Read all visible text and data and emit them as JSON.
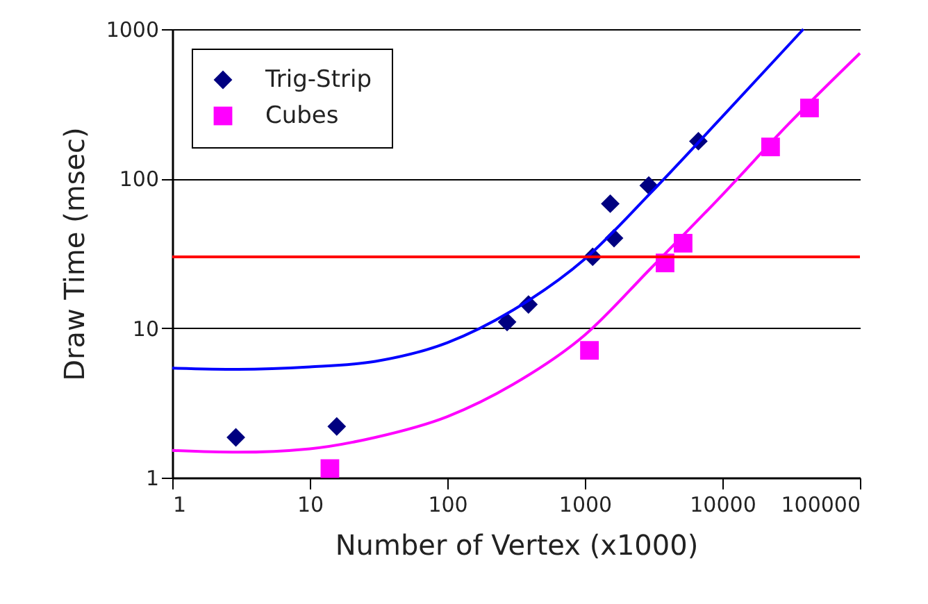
{
  "chart_data": {
    "type": "scatter",
    "xlabel": "Number of Vertex (x1000)",
    "ylabel": "Draw Time (msec)",
    "log": "xy",
    "grid": "y",
    "legend": "top left",
    "xlim": [
      1,
      100000
    ],
    "xticks": [
      1,
      10,
      100,
      1000,
      10000,
      100000
    ],
    "ylim": [
      1,
      1000
    ],
    "yticks": [
      1,
      10,
      100,
      1000
    ],
    "series": [
      {
        "name": "Trig-Strip",
        "marker": "diamond",
        "color": "#000080",
        "x": [
          2.9,
          15.7,
          272,
          389,
          1140,
          1530,
          1630,
          2915,
          6690
        ],
        "values": [
          1.86,
          2.2,
          11,
          14.4,
          30,
          68,
          40,
          90,
          178
        ]
      },
      {
        "name": "Cubes",
        "marker": "square",
        "color": "#ff00ff",
        "x": [
          14,
          1080,
          3830,
          5180,
          22400,
          43000
        ],
        "values": [
          1.15,
          7.1,
          27.3,
          37,
          163,
          297
        ]
      },
      {
        "type": "line",
        "marker": "none",
        "color": "#0000ff",
        "x": [
          1,
          3,
          10,
          30,
          100,
          300,
          1000,
          3000,
          10000,
          38800
        ],
        "values": [
          5.4,
          5.3,
          5.5,
          6,
          8,
          13.2,
          29,
          80,
          260,
          1000
        ]
      },
      {
        "type": "line",
        "marker": "none",
        "color": "#ff00ff",
        "x": [
          1,
          3,
          10,
          30,
          100,
          300,
          1000,
          3000,
          10000,
          30000,
          100000
        ],
        "values": [
          1.52,
          1.48,
          1.56,
          1.86,
          2.56,
          4.2,
          9,
          25,
          78,
          230,
          690
        ]
      }
    ],
    "ref_lines": [
      {
        "axis": "y",
        "value": 30,
        "color": "#ff0000"
      }
    ]
  }
}
